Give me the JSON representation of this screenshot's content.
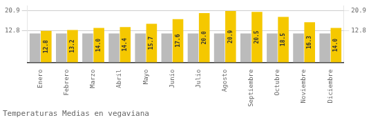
{
  "chart_data": {
    "type": "bar",
    "title": "Temperaturas Medias en vegaviana",
    "categories": [
      "Enero",
      "Febrero",
      "Marzo",
      "Abril",
      "Mayo",
      "Junio",
      "Julio",
      "Agosto",
      "Septiembre",
      "Octubre",
      "Noviembre",
      "Diciembre"
    ],
    "series": [
      {
        "color": "#BBBBBB",
        "values": [
          11.8,
          11.8,
          11.8,
          11.8,
          11.8,
          11.8,
          11.8,
          11.8,
          11.8,
          11.8,
          11.8,
          11.8
        ]
      },
      {
        "color": "#F5C800",
        "values": [
          12.8,
          13.2,
          14.0,
          14.4,
          15.7,
          17.6,
          20.0,
          20.9,
          20.5,
          18.5,
          16.3,
          14.0
        ],
        "value_labels": [
          "12.8",
          "13.2",
          "14.0",
          "14.4",
          "15.7",
          "17.6",
          "20.0",
          "20.9",
          "20.5",
          "18.5",
          "16.3",
          "14.0"
        ],
        "data_labels": true
      }
    ],
    "ylim": [
      0,
      23.0
    ],
    "yticks": [
      12.8,
      20.9
    ],
    "y2lim": [
      0,
      23.0
    ],
    "y2ticks": [
      12.8,
      20.9
    ],
    "grid": true
  }
}
